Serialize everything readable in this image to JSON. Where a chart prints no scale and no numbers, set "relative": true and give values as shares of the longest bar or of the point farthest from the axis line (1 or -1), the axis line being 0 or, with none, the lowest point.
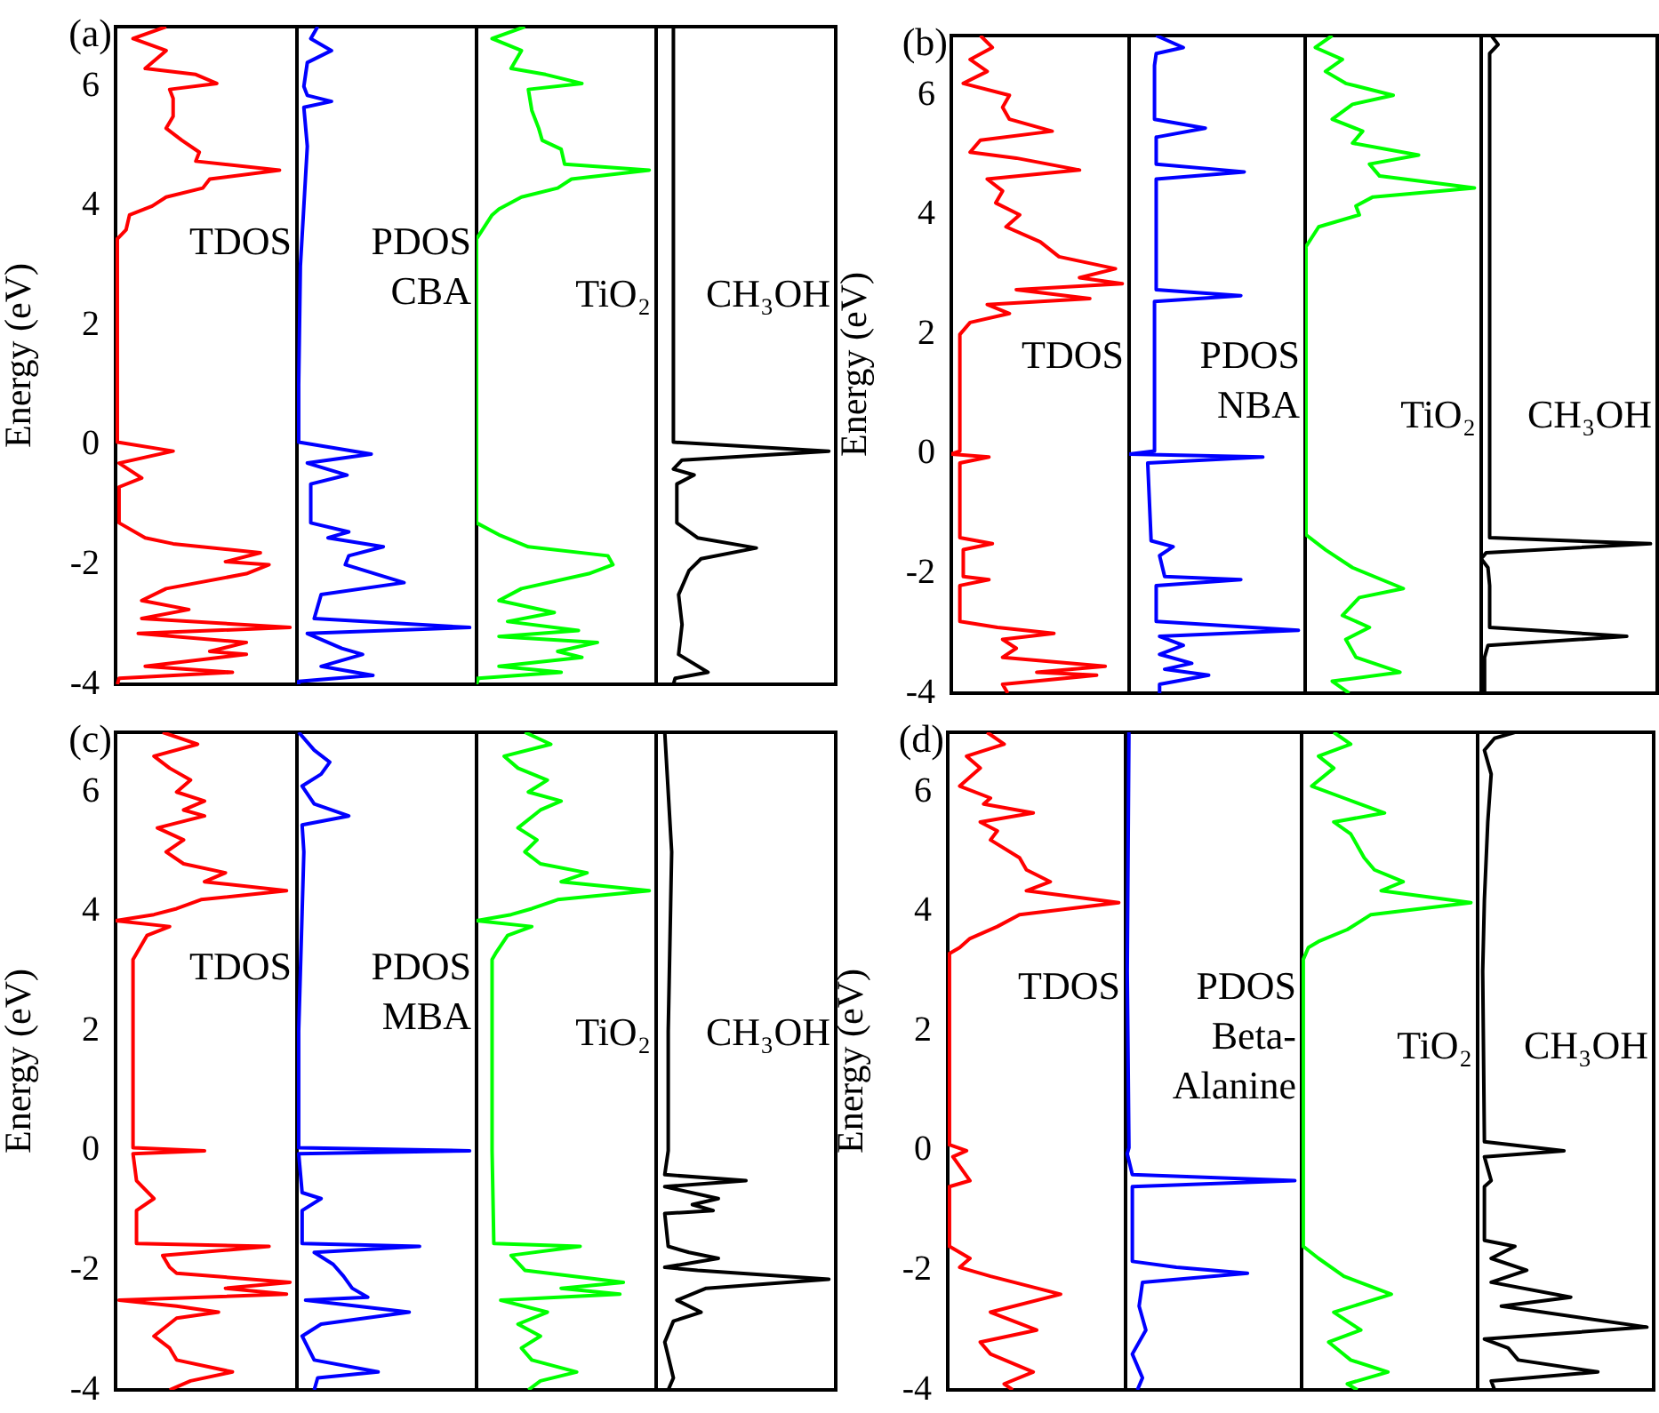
{
  "chart_data": [
    {
      "type": "line",
      "orientation": "horizontal",
      "relative": true,
      "ylabel": "Energy (eV)",
      "ylim": [
        -4,
        7
      ],
      "yticks": [
        -4,
        -2,
        0,
        2,
        4,
        6
      ],
      "tick_labels": "y",
      "annotations": [
        "(a)",
        "TDOS"
      ],
      "x": [
        7,
        6.8,
        6.6,
        6.3,
        6.2,
        6.05,
        5.95,
        5.8,
        5.5,
        5.3,
        5.1,
        4.9,
        4.75,
        4.6,
        4.45,
        4.3,
        4.15,
        4,
        3.85,
        3.6,
        3.45,
        0.05,
        -0.1,
        -0.3,
        -0.55,
        -0.7,
        -1.3,
        -1.55,
        -1.65,
        -1.8,
        -1.95,
        -2,
        -2.15,
        -2.4,
        -2.6,
        -2.75,
        -2.9,
        -3.05,
        -3.15,
        -3.3,
        -3.45,
        -3.5,
        -3.7,
        -3.8,
        -3.9,
        -4
      ],
      "series": [
        {
          "color": "#ff0000",
          "values": [
            0.29,
            0.1,
            0.29,
            0.17,
            0.46,
            0.58,
            0.31,
            0.33,
            0.33,
            0.29,
            0.38,
            0.48,
            0.46,
            0.94,
            0.54,
            0.5,
            0.29,
            0.21,
            0.08,
            0.06,
            0.01,
            0.01,
            0.33,
            0.02,
            0.15,
            0.02,
            0.02,
            0.17,
            0.33,
            0.83,
            0.63,
            0.88,
            0.75,
            0.29,
            0.15,
            0.42,
            0.15,
            1,
            0.13,
            0.75,
            0.54,
            0.75,
            0.17,
            0.67,
            0.02,
            0.01
          ]
        }
      ]
    },
    {
      "type": "line",
      "orientation": "horizontal",
      "relative": true,
      "ylim": [
        -4,
        7
      ],
      "tick_labels": false,
      "annotations": [
        "PDOS",
        "CBA"
      ],
      "x": [
        7,
        6.8,
        6.6,
        6.4,
        6,
        5.85,
        5.75,
        5.65,
        5,
        4,
        3,
        1,
        0.05,
        -0.15,
        -0.3,
        -0.5,
        -0.65,
        -1.3,
        -1.45,
        -1.55,
        -1.7,
        -1.85,
        -2,
        -2.3,
        -2.5,
        -2.9,
        -3.05,
        -3.15,
        -3.4,
        -3.5,
        -3.7,
        -3.85,
        -3.95,
        -4
      ],
      "series": [
        {
          "color": "#0000ff",
          "values": [
            0.12,
            0.08,
            0.2,
            0.06,
            0.04,
            0.06,
            0.2,
            0.04,
            0.06,
            0.04,
            0.02,
            0.01,
            0.01,
            0.43,
            0.06,
            0.29,
            0.08,
            0.08,
            0.3,
            0.18,
            0.5,
            0.3,
            0.28,
            0.62,
            0.14,
            0.1,
            1,
            0.06,
            0.26,
            0.38,
            0.14,
            0.44,
            0.01,
            0.01
          ]
        }
      ]
    },
    {
      "type": "line",
      "orientation": "horizontal",
      "relative": true,
      "ylim": [
        -4,
        7
      ],
      "tick_labels": false,
      "annotations": [
        "TiO₂"
      ],
      "x": [
        7,
        6.8,
        6.6,
        6.3,
        6.2,
        6.05,
        5.95,
        5.6,
        5.3,
        5.1,
        4.95,
        4.7,
        4.6,
        4.45,
        4.3,
        4.15,
        3.95,
        3.85,
        3.45,
        0,
        -1.3,
        -1.5,
        -1.7,
        -1.85,
        -2,
        -2.15,
        -2.4,
        -2.6,
        -2.8,
        -2.95,
        -3.1,
        -3.2,
        -3.3,
        -3.45,
        -3.55,
        -3.7,
        -3.8,
        -3.9,
        -4
      ],
      "series": [
        {
          "color": "#00ff00",
          "values": [
            0.28,
            0.09,
            0.26,
            0.2,
            0.4,
            0.61,
            0.3,
            0.32,
            0.36,
            0.38,
            0.49,
            0.51,
            1,
            0.55,
            0.47,
            0.26,
            0.13,
            0.09,
            0,
            0,
            0,
            0.13,
            0.3,
            0.76,
            0.79,
            0.65,
            0.26,
            0.13,
            0.45,
            0.18,
            0.59,
            0.13,
            0.7,
            0.47,
            0.61,
            0.13,
            0.49,
            0.01,
            0
          ]
        }
      ]
    },
    {
      "type": "line",
      "orientation": "horizontal",
      "relative": true,
      "ylim": [
        -4,
        7
      ],
      "tick_labels": false,
      "annotations": [
        "CH₃OH"
      ],
      "x": [
        7,
        3,
        0.05,
        -0.1,
        -0.25,
        -0.4,
        -0.5,
        -0.65,
        -1.3,
        -1.55,
        -1.72,
        -1.9,
        -2.1,
        -2.5,
        -3,
        -3.5,
        -3.8,
        -3.9,
        -4
      ],
      "series": [
        {
          "color": "#000000",
          "values": [
            0.1,
            0.1,
            0.1,
            1,
            0.15,
            0.1,
            0.22,
            0.12,
            0.12,
            0.24,
            0.58,
            0.26,
            0.19,
            0.13,
            0.15,
            0.13,
            0.3,
            0.11,
            0.1
          ]
        }
      ]
    },
    {
      "type": "line",
      "orientation": "horizontal",
      "relative": true,
      "ylabel": "Energy (eV)",
      "ylim": [
        -4,
        7
      ],
      "yticks": [
        -4,
        -2,
        0,
        2,
        4,
        6
      ],
      "tick_labels": "y",
      "annotations": [
        "(b)",
        "TDOS"
      ],
      "x": [
        7,
        6.8,
        6.6,
        6.4,
        6.2,
        6,
        5.8,
        5.6,
        5.4,
        5.25,
        5.05,
        4.95,
        4.75,
        4.6,
        4.4,
        4.2,
        4,
        3.8,
        3.55,
        3.3,
        3.1,
        2.95,
        2.85,
        2.75,
        2.6,
        2.5,
        2.35,
        2.2,
        2,
        0.05,
        0,
        -0.05,
        -0.15,
        -1.4,
        -1.5,
        -1.6,
        -2.05,
        -2.1,
        -2.2,
        -2.8,
        -2.9,
        -3,
        -3.1,
        -3.25,
        -3.4,
        -3.55,
        -3.65,
        -3.7,
        -3.85,
        -4
      ],
      "series": [
        {
          "color": "#ff0000",
          "values": [
            0.17,
            0.24,
            0.11,
            0.21,
            0.07,
            0.34,
            0.3,
            0.34,
            0.59,
            0.17,
            0.11,
            0.38,
            0.75,
            0.21,
            0.3,
            0.26,
            0.4,
            0.32,
            0.52,
            0.63,
            0.96,
            0.75,
            1,
            0.38,
            0.81,
            0.21,
            0.34,
            0.11,
            0.05,
            0.05,
            0,
            0.22,
            0.05,
            0.05,
            0.24,
            0.07,
            0.07,
            0.22,
            0.05,
            0.05,
            0.27,
            0.6,
            0.3,
            0.38,
            0.3,
            0.9,
            0.5,
            0.85,
            0.3,
            0.33
          ]
        }
      ]
    },
    {
      "type": "line",
      "orientation": "horizontal",
      "relative": true,
      "ylim": [
        -4,
        7
      ],
      "tick_labels": false,
      "annotations": [
        "PDOS",
        "NBA"
      ],
      "x": [
        7,
        6.8,
        6.7,
        6.5,
        5.6,
        5.45,
        5.3,
        4.85,
        4.72,
        4.6,
        2.75,
        2.65,
        2.55,
        0.05,
        0,
        -0.05,
        -0.15,
        -1.45,
        -1.55,
        -1.7,
        -2.05,
        -2.1,
        -2.2,
        -2.8,
        -2.95,
        -3.05,
        -3.2,
        -3.35,
        -3.5,
        -3.6,
        -3.7,
        -3.85,
        -4
      ],
      "series": [
        {
          "color": "#0000ff",
          "values": [
            0.16,
            0.32,
            0.16,
            0.15,
            0.15,
            0.45,
            0.16,
            0.16,
            0.68,
            0.16,
            0.16,
            0.66,
            0.15,
            0.15,
            0,
            0.79,
            0.11,
            0.13,
            0.26,
            0.18,
            0.21,
            0.66,
            0.16,
            0.16,
            1,
            0.18,
            0.32,
            0.18,
            0.37,
            0.21,
            0.47,
            0.18,
            0.18
          ]
        }
      ]
    },
    {
      "type": "line",
      "orientation": "horizontal",
      "relative": true,
      "ylim": [
        -4,
        7
      ],
      "tick_labels": false,
      "annotations": [
        "TiO₂"
      ],
      "x": [
        7,
        6.8,
        6.6,
        6.4,
        6.2,
        6,
        5.85,
        5.6,
        5.4,
        5.2,
        5,
        4.85,
        4.65,
        4.45,
        4.3,
        4.15,
        4,
        3.8,
        3.45,
        0,
        -1.35,
        -1.6,
        -1.9,
        -2.25,
        -2.4,
        -2.7,
        -2.9,
        -3.1,
        -3.4,
        -3.65,
        -3.8,
        -4
      ],
      "series": [
        {
          "color": "#00ff00",
          "values": [
            0.16,
            0.06,
            0.22,
            0.12,
            0.24,
            0.52,
            0.28,
            0.16,
            0.34,
            0.28,
            0.67,
            0.38,
            0.44,
            1,
            0.4,
            0.3,
            0.32,
            0.08,
            0,
            0,
            0.01,
            0.12,
            0.28,
            0.58,
            0.32,
            0.22,
            0.38,
            0.24,
            0.3,
            0.56,
            0.16,
            0.26
          ]
        }
      ]
    },
    {
      "type": "line",
      "orientation": "horizontal",
      "relative": true,
      "ylim": [
        -4,
        7
      ],
      "tick_labels": false,
      "annotations": [
        "CH₃OH"
      ],
      "x": [
        7,
        6.85,
        6.7,
        -1.4,
        -1.5,
        -1.65,
        -1.75,
        -1.9,
        -2.2,
        -2.9,
        -3.05,
        -3.2,
        -3.4,
        -4
      ],
      "series": [
        {
          "color": "#000000",
          "values": [
            0.06,
            0.1,
            0.05,
            0.05,
            1,
            0.03,
            0,
            0.04,
            0.05,
            0.05,
            0.86,
            0.04,
            0.02,
            0.02
          ]
        }
      ]
    },
    {
      "type": "line",
      "orientation": "horizontal",
      "relative": true,
      "ylabel": "Energy (eV)",
      "ylim": [
        -4,
        7
      ],
      "yticks": [
        -4,
        -2,
        0,
        2,
        4,
        6
      ],
      "tick_labels": "y",
      "annotations": [
        "(c)",
        "TDOS"
      ],
      "x": [
        7,
        6.8,
        6.6,
        6.4,
        6.2,
        6,
        5.85,
        5.7,
        5.6,
        5.4,
        5.2,
        5,
        4.8,
        4.65,
        4.5,
        4.35,
        4.2,
        4.05,
        3.95,
        3.85,
        3.75,
        3.6,
        3.3,
        3.2,
        0.05,
        0,
        -0.05,
        -0.5,
        -0.8,
        -1,
        -1.55,
        -1.6,
        -1.75,
        -1.95,
        -2.05,
        -2.2,
        -2.3,
        -2.4,
        -2.5,
        -2.6,
        -2.7,
        -2.8,
        -3.1,
        -3.3,
        -3.5,
        -3.7,
        -3.85,
        -4
      ],
      "series": [
        {
          "color": "#ff0000",
          "values": [
            0.27,
            0.47,
            0.22,
            0.31,
            0.43,
            0.35,
            0.51,
            0.39,
            0.51,
            0.24,
            0.39,
            0.29,
            0.39,
            0.63,
            0.51,
            0.98,
            0.49,
            0.35,
            0.22,
            0,
            0.31,
            0.18,
            0.12,
            0.1,
            0.1,
            0.51,
            0.1,
            0.12,
            0.22,
            0.12,
            0.12,
            0.88,
            0.27,
            0.31,
            0.35,
            1,
            0.63,
            0.98,
            0.02,
            0.35,
            0.59,
            0.35,
            0.22,
            0.31,
            0.35,
            0.67,
            0.43,
            0.31
          ]
        }
      ]
    },
    {
      "type": "line",
      "orientation": "horizontal",
      "relative": true,
      "ylim": [
        -4,
        7
      ],
      "tick_labels": false,
      "annotations": [
        "PDOS",
        "MBA"
      ],
      "x": [
        7,
        6.7,
        6.5,
        6.3,
        6.1,
        5.8,
        5.6,
        5.45,
        5,
        4,
        2,
        0.05,
        0,
        -0.05,
        -0.7,
        -0.8,
        -1,
        -1.55,
        -1.6,
        -1.7,
        -1.9,
        -2.1,
        -2.3,
        -2.45,
        -2.5,
        -2.7,
        -2.9,
        -3.1,
        -3.5,
        -3.7,
        -3.8,
        -4
      ],
      "series": [
        {
          "color": "#0000ff",
          "values": [
            0.01,
            0.1,
            0.19,
            0.14,
            0.03,
            0.1,
            0.3,
            0.03,
            0.04,
            0.03,
            0.01,
            0.01,
            1,
            0.01,
            0.03,
            0.14,
            0.03,
            0.03,
            0.71,
            0.1,
            0.21,
            0.27,
            0.32,
            0.41,
            0.05,
            0.65,
            0.14,
            0.03,
            0.1,
            0.47,
            0.12,
            0.1
          ]
        }
      ]
    },
    {
      "type": "line",
      "orientation": "horizontal",
      "relative": true,
      "ylim": [
        -4,
        7
      ],
      "tick_labels": false,
      "annotations": [
        "TiO₂"
      ],
      "x": [
        7,
        6.8,
        6.6,
        6.4,
        6.2,
        6,
        5.85,
        5.7,
        5.4,
        5.2,
        5,
        4.8,
        4.65,
        4.5,
        4.35,
        4.2,
        4.05,
        3.95,
        3.85,
        3.75,
        3.6,
        3.3,
        3.2,
        0,
        -1.55,
        -1.6,
        -1.75,
        -2,
        -2.2,
        -2.3,
        -2.4,
        -2.5,
        -2.7,
        -2.9,
        -3.1,
        -3.3,
        -3.5,
        -3.7,
        -3.85,
        -4
      ],
      "series": [
        {
          "color": "#00ff00",
          "values": [
            0.28,
            0.43,
            0.16,
            0.24,
            0.41,
            0.3,
            0.49,
            0.37,
            0.24,
            0.35,
            0.28,
            0.37,
            0.64,
            0.49,
            1,
            0.47,
            0.32,
            0.2,
            0,
            0.32,
            0.18,
            0.11,
            0.09,
            0.09,
            0.1,
            0.6,
            0.2,
            0.28,
            0.85,
            0.49,
            0.83,
            0.14,
            0.41,
            0.24,
            0.37,
            0.26,
            0.32,
            0.58,
            0.37,
            0.3
          ]
        }
      ]
    },
    {
      "type": "line",
      "orientation": "horizontal",
      "relative": true,
      "ylim": [
        -4,
        7
      ],
      "tick_labels": false,
      "annotations": [
        "CH₃OH"
      ],
      "x": [
        7,
        5,
        2,
        0,
        -0.4,
        -0.5,
        -0.6,
        -0.8,
        -0.9,
        -1,
        -1.05,
        -1.6,
        -1.7,
        -1.8,
        -1.95,
        -2,
        -2.15,
        -2.3,
        -2.5,
        -2.7,
        -2.85,
        -3.2,
        -3.8,
        -4
      ],
      "series": [
        {
          "color": "#000000",
          "values": [
            0.05,
            0.09,
            0.07,
            0.07,
            0.05,
            0.52,
            0.05,
            0.36,
            0.21,
            0.33,
            0.05,
            0.07,
            0.19,
            0.36,
            0.05,
            0.24,
            1,
            0.29,
            0.12,
            0.26,
            0.1,
            0.05,
            0.1,
            0.07
          ]
        }
      ]
    },
    {
      "type": "line",
      "orientation": "horizontal",
      "relative": true,
      "ylabel": "Energy (eV)",
      "ylim": [
        -4,
        7
      ],
      "yticks": [
        -4,
        -2,
        0,
        2,
        4,
        6
      ],
      "tick_labels": "y",
      "annotations": [
        "(d)",
        "TDOS"
      ],
      "x": [
        7,
        6.8,
        6.6,
        6.4,
        6.1,
        5.9,
        5.8,
        5.65,
        5.5,
        5.35,
        5.2,
        4.9,
        4.7,
        4.5,
        4.35,
        4.15,
        3.95,
        3.75,
        3.55,
        3.4,
        3.3,
        0.1,
        0,
        -0.1,
        -0.5,
        -0.6,
        -1.6,
        -1.8,
        -1.95,
        -2.1,
        -2.4,
        -2.7,
        -3,
        -3.2,
        -3.4,
        -3.7,
        -3.9,
        -4
      ],
      "series": [
        {
          "color": "#ff0000",
          "values": [
            0.23,
            0.33,
            0.11,
            0.19,
            0.07,
            0.25,
            0.21,
            0.5,
            0.19,
            0.29,
            0.25,
            0.42,
            0.46,
            0.6,
            0.46,
            1,
            0.42,
            0.29,
            0.13,
            0.07,
            0.01,
            0.01,
            0.11,
            0.03,
            0.13,
            0.01,
            0.01,
            0.13,
            0.07,
            0.25,
            0.66,
            0.25,
            0.52,
            0.19,
            0.25,
            0.5,
            0.33,
            0.38
          ]
        }
      ]
    },
    {
      "type": "line",
      "orientation": "horizontal",
      "relative": true,
      "ylim": [
        -4,
        7
      ],
      "tick_labels": false,
      "annotations": [
        "PDOS",
        "Beta-",
        "Alanine"
      ],
      "x": [
        7,
        3,
        0.05,
        -0.05,
        -0.4,
        -0.5,
        -0.6,
        -1.85,
        -1.95,
        -2.05,
        -2.2,
        -2.6,
        -3,
        -3.4,
        -3.8,
        -4
      ],
      "series": [
        {
          "color": "#0000ff",
          "values": [
            0.02,
            0.01,
            0.02,
            0.01,
            0.04,
            1,
            0.04,
            0.04,
            0.3,
            0.72,
            0.1,
            0.08,
            0.12,
            0.04,
            0.1,
            0.07
          ]
        }
      ]
    },
    {
      "type": "line",
      "orientation": "horizontal",
      "relative": true,
      "ylim": [
        -4,
        7
      ],
      "tick_labels": false,
      "annotations": [
        "TiO₂"
      ],
      "x": [
        7,
        6.8,
        6.6,
        6.4,
        6.1,
        5.9,
        5.65,
        5.5,
        5.3,
        4.9,
        4.7,
        4.5,
        4.35,
        4.15,
        3.95,
        3.7,
        3.5,
        3.4,
        3.2,
        0,
        -1.6,
        -1.8,
        -2.1,
        -2.4,
        -2.7,
        -3,
        -3.2,
        -3.5,
        -3.7,
        -3.9,
        -4
      ],
      "series": [
        {
          "color": "#00ff00",
          "values": [
            0.19,
            0.29,
            0.1,
            0.19,
            0.06,
            0.25,
            0.49,
            0.19,
            0.29,
            0.37,
            0.43,
            0.6,
            0.47,
            1,
            0.41,
            0.27,
            0.1,
            0.04,
            0.01,
            0.01,
            0.01,
            0.1,
            0.25,
            0.53,
            0.19,
            0.35,
            0.16,
            0.29,
            0.51,
            0.27,
            0.33
          ]
        }
      ]
    },
    {
      "type": "line",
      "orientation": "horizontal",
      "relative": true,
      "ylim": [
        -4,
        7
      ],
      "tick_labels": false,
      "annotations": [
        "CH₃OH"
      ],
      "x": [
        7,
        6.9,
        6.7,
        6.3,
        5.5,
        4.2,
        3,
        0.15,
        0,
        -0.1,
        -0.5,
        -0.6,
        -1.5,
        -1.6,
        -1.8,
        -2,
        -2.2,
        -2.45,
        -2.6,
        -2.95,
        -3.15,
        -3.3,
        -3.5,
        -3.7,
        -3.85,
        -4
      ],
      "series": [
        {
          "color": "#000000",
          "values": [
            0.22,
            0.1,
            0.04,
            0.08,
            0.06,
            0.04,
            0.03,
            0.04,
            0.51,
            0.04,
            0.08,
            0.04,
            0.04,
            0.22,
            0.08,
            0.29,
            0.08,
            0.55,
            0.14,
            1,
            0.04,
            0.18,
            0.24,
            0.71,
            0.08,
            0.1
          ]
        }
      ]
    }
  ]
}
